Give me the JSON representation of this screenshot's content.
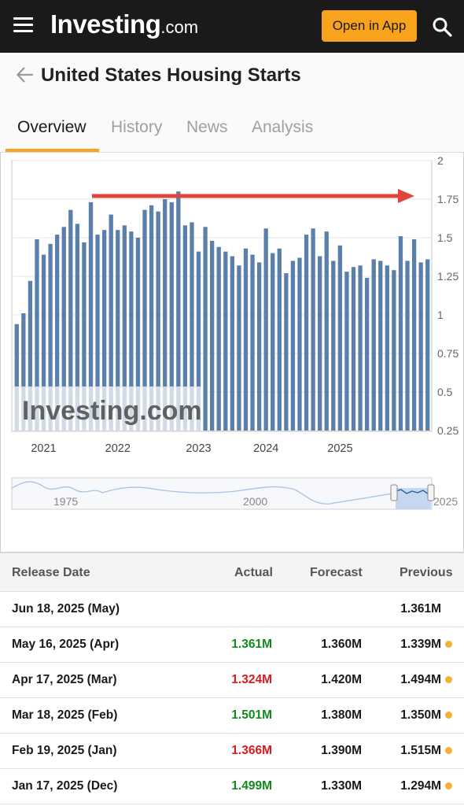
{
  "header": {
    "logo_text": "Investing",
    "logo_suffix": ".com",
    "open_app_label": "Open in App"
  },
  "page": {
    "title": "United States Housing Starts"
  },
  "tabs": [
    {
      "label": "Overview",
      "active": true
    },
    {
      "label": "History",
      "active": false
    },
    {
      "label": "News",
      "active": false
    },
    {
      "label": "Analysis",
      "active": false
    }
  ],
  "chart_data": {
    "type": "bar",
    "title": "",
    "xlabel": "",
    "ylabel": "",
    "ylim": [
      0.25,
      2
    ],
    "yticks": [
      "0.25",
      "0.5",
      "0.75",
      "1",
      "1.25",
      "1.5",
      "1.75",
      "2"
    ],
    "x_tick_labels": [
      "2021",
      "2022",
      "2023",
      "2024",
      "2025"
    ],
    "grid": true,
    "bar_color": "#5b7fab",
    "watermark": "Investing.com",
    "annotation": {
      "type": "arrow",
      "color": "#e0443a",
      "level": 1.75
    },
    "series": [
      {
        "values": [
          0.94,
          1.01,
          1.22,
          1.49,
          1.39,
          1.46,
          1.52,
          1.57,
          1.68,
          1.59,
          1.47,
          1.73,
          1.52,
          1.55,
          1.65,
          1.55,
          1.58,
          1.54,
          1.5,
          1.68,
          1.71,
          1.67,
          1.75,
          1.73,
          1.8,
          1.58,
          1.6,
          1.41,
          1.57,
          1.48,
          1.44,
          1.41,
          1.38,
          1.32,
          1.43,
          1.39,
          1.34,
          1.56,
          1.4,
          1.43,
          1.27,
          1.35,
          1.37,
          1.52,
          1.56,
          1.38,
          1.54,
          1.35,
          1.45,
          1.28,
          1.31,
          1.32,
          1.24,
          1.36,
          1.35,
          1.32,
          1.29,
          1.51,
          1.35,
          1.49,
          1.34,
          1.36
        ]
      }
    ],
    "navigator": {
      "labels": [
        "1975",
        "2000",
        "2025"
      ]
    }
  },
  "table": {
    "headers": [
      "Release Date",
      "Actual",
      "Forecast",
      "Previous"
    ],
    "rows": [
      {
        "date": "Jun 18, 2025 (May)",
        "actual": "",
        "actual_status": "",
        "forecast": "",
        "previous": "1.361M",
        "revised": false
      },
      {
        "date": "May 16, 2025 (Apr)",
        "actual": "1.361M",
        "actual_status": "green",
        "forecast": "1.360M",
        "previous": "1.339M",
        "revised": true
      },
      {
        "date": "Apr 17, 2025 (Mar)",
        "actual": "1.324M",
        "actual_status": "red",
        "forecast": "1.420M",
        "previous": "1.494M",
        "revised": true
      },
      {
        "date": "Mar 18, 2025 (Feb)",
        "actual": "1.501M",
        "actual_status": "green",
        "forecast": "1.380M",
        "previous": "1.350M",
        "revised": true
      },
      {
        "date": "Feb 19, 2025 (Jan)",
        "actual": "1.366M",
        "actual_status": "red",
        "forecast": "1.390M",
        "previous": "1.515M",
        "revised": true
      },
      {
        "date": "Jan 17, 2025 (Dec)",
        "actual": "1.499M",
        "actual_status": "green",
        "forecast": "1.330M",
        "previous": "1.294M",
        "revised": true
      }
    ]
  },
  "colors": {
    "accent": "#f9a21b",
    "positive": "#118a1c",
    "negative": "#d91c1c",
    "revised_dot": "#f2b233"
  }
}
